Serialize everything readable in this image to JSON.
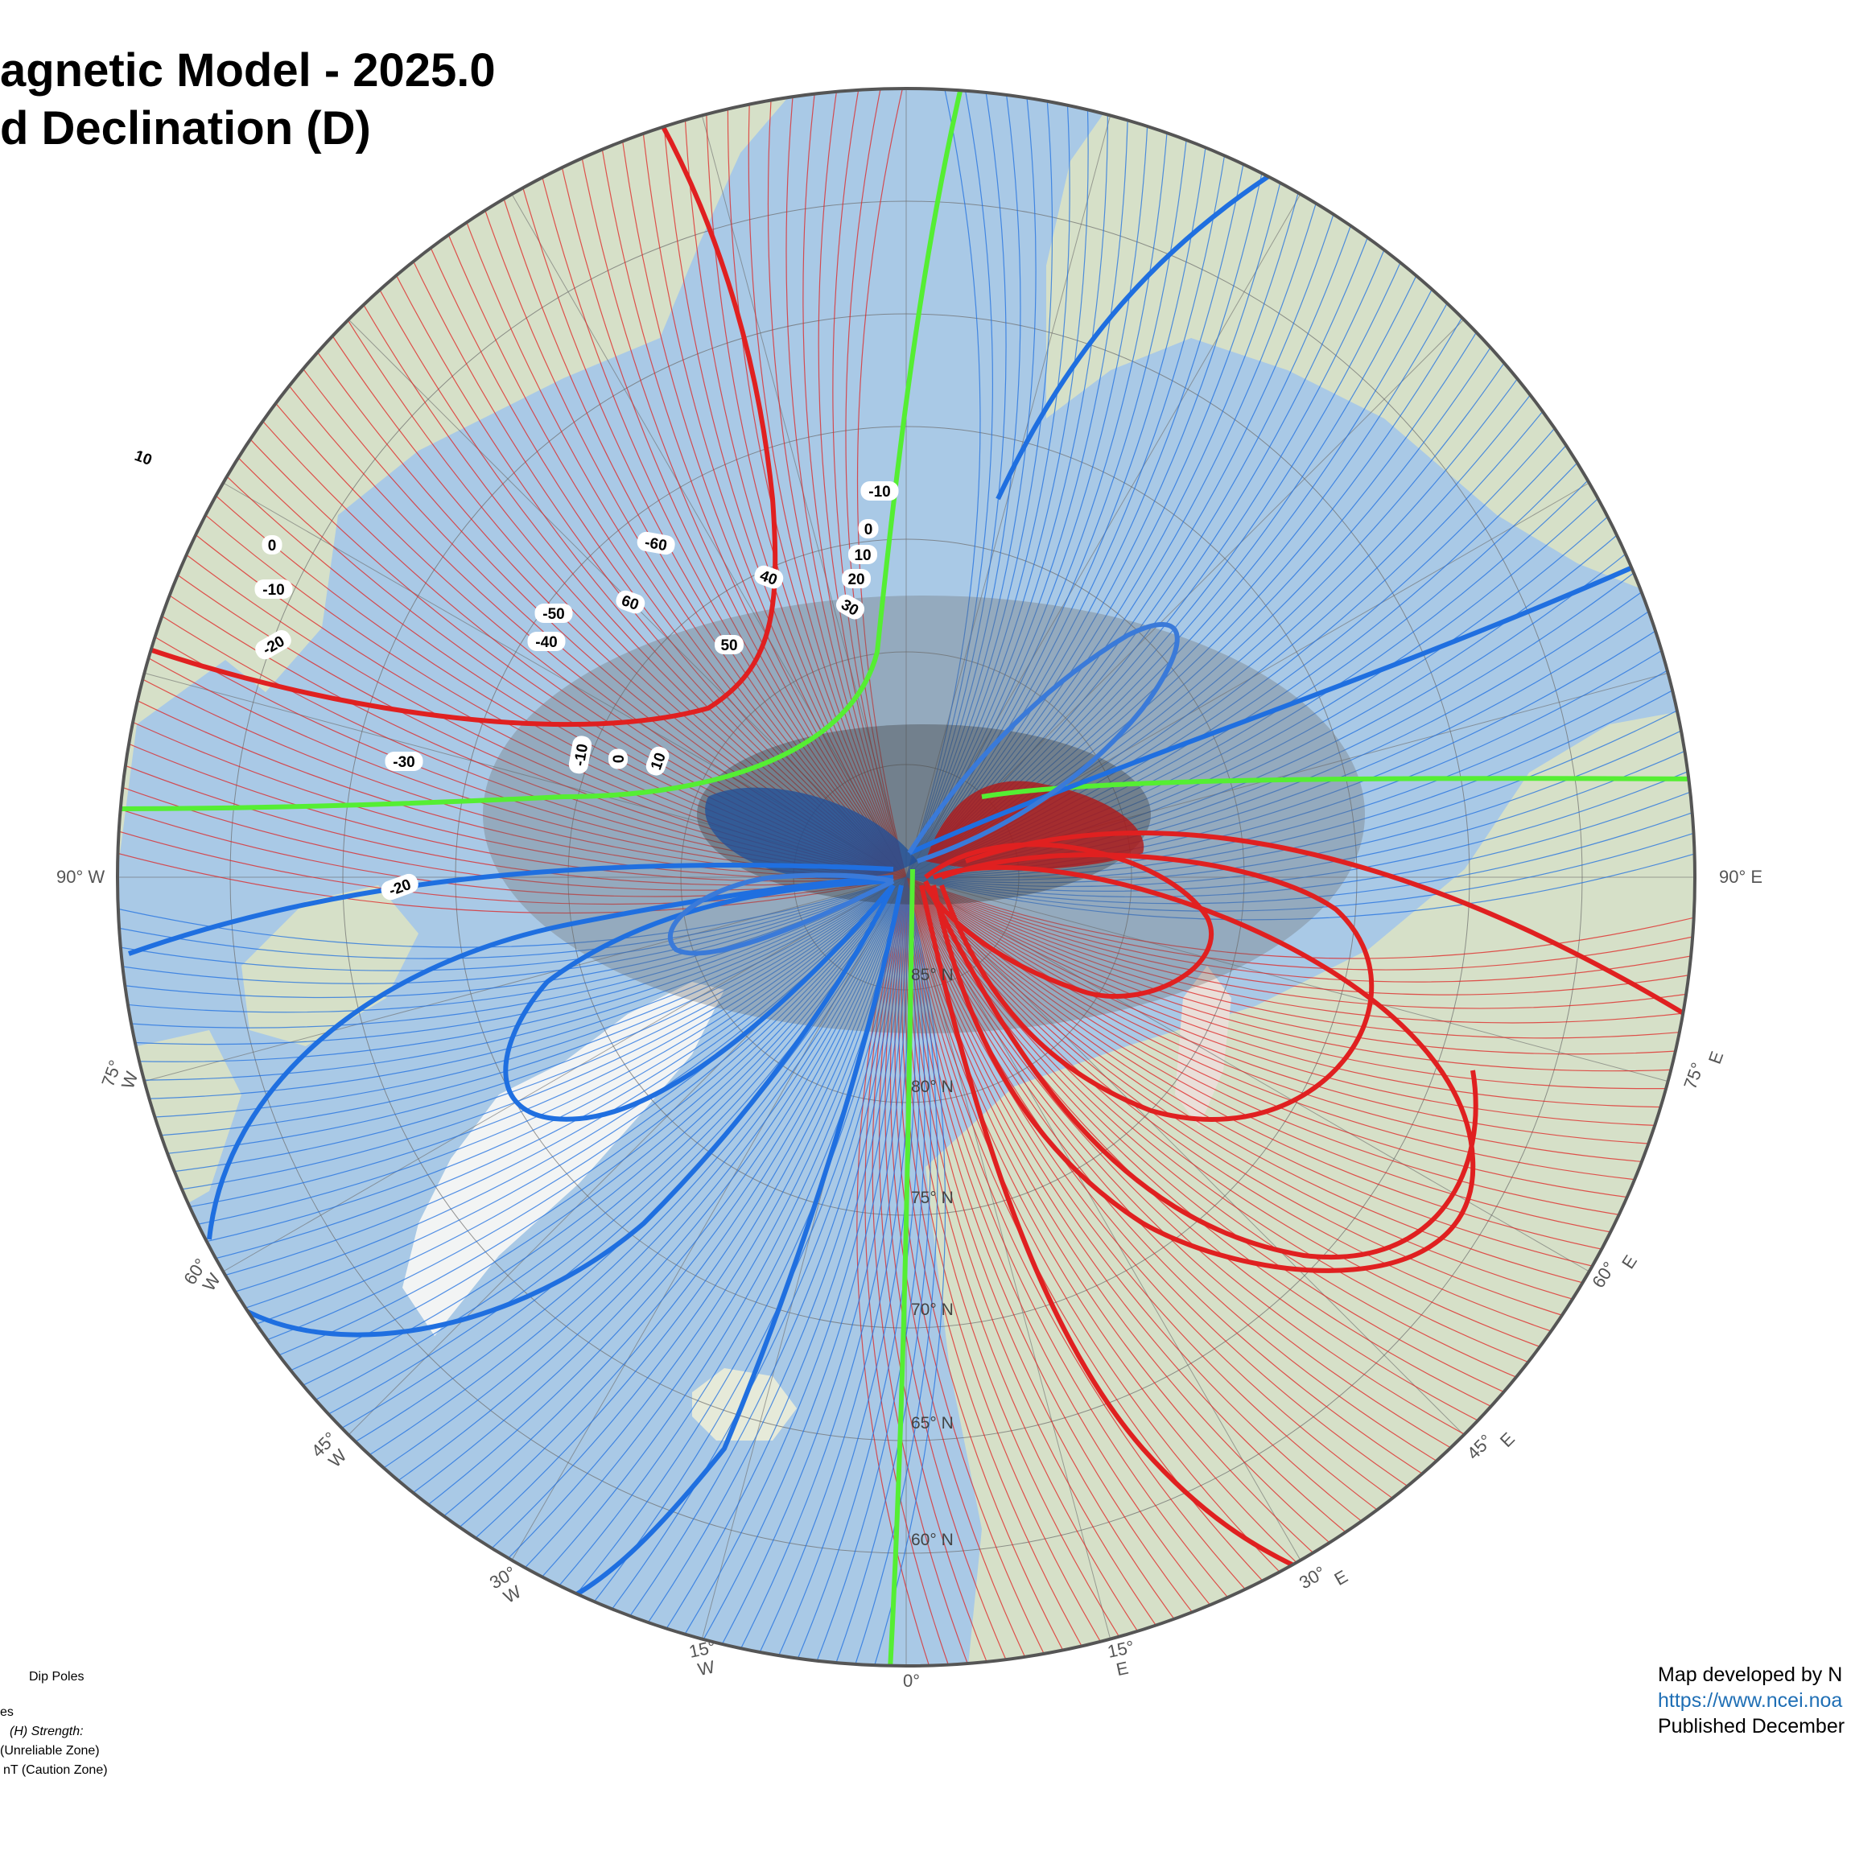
{
  "title": {
    "line1": "agnetic Model - 2025.0",
    "line2": "d Declination (D)"
  },
  "colors": {
    "positive": "#e02020",
    "negative": "#1f6fe0",
    "zero": "#55ee33",
    "ocean": "#a9c9e6",
    "land": "#d8e2cc"
  },
  "edge_labels": {
    "west90": "90° W",
    "east90": "90° E",
    "w75": [
      "75°",
      "W"
    ],
    "e75": [
      "75°",
      "E"
    ],
    "w60": [
      "60°",
      "W"
    ],
    "e60": [
      "60°",
      "E"
    ],
    "w45": [
      "45°",
      "W"
    ],
    "e45": [
      "45°",
      "E"
    ],
    "w30": [
      "30°",
      "W"
    ],
    "e30": [
      "30°",
      "E"
    ],
    "w15": [
      "15°",
      "W"
    ],
    "e15": [
      "15°",
      "E"
    ],
    "zero": "0°"
  },
  "latitude_labels": [
    "85° N",
    "80° N",
    "75° N",
    "70° N",
    "65° N",
    "60° N"
  ],
  "contour_labels": [
    "10",
    "0",
    "-10",
    "-20",
    "-30",
    "-20",
    "-10",
    "0",
    "10",
    "-50",
    "-40",
    "-60",
    "60",
    "40",
    "50",
    "30",
    "20",
    "10",
    "0",
    "-10"
  ],
  "legend": {
    "dip_poles": "Dip Poles",
    "es": "es",
    "h_strength": "(H) Strength:",
    "unreliable": "(Unreliable Zone)",
    "caution": "nT (Caution Zone)"
  },
  "credits": {
    "line1": "Map developed by N",
    "url": "https://www.ncei.noa",
    "line3": "Published December"
  }
}
